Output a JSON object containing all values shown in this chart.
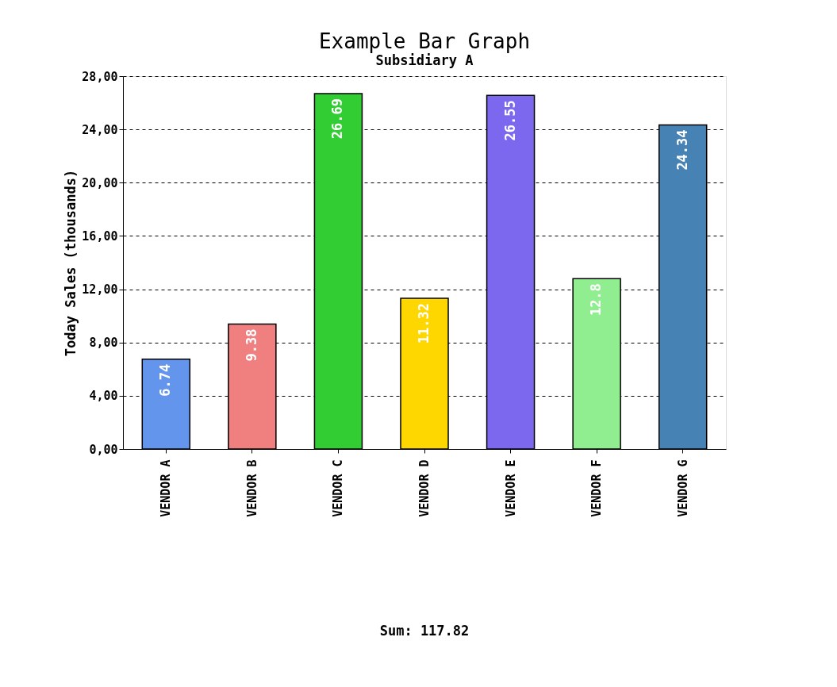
{
  "chart_data": {
    "type": "bar",
    "title": "Example Bar Graph",
    "subtitle": "Subsidiary A",
    "ylabel": "Today Sales (thousands)",
    "categories": [
      "VENDOR A",
      "VENDOR B",
      "VENDOR C",
      "VENDOR D",
      "VENDOR E",
      "VENDOR F",
      "VENDOR G"
    ],
    "values": [
      6.74,
      9.38,
      26.69,
      11.32,
      26.55,
      12.8,
      24.34
    ],
    "colors": [
      "#6495ed",
      "#f08080",
      "#32cd32",
      "#ffd700",
      "#7b68ee",
      "#90ee90",
      "#4682b4"
    ],
    "ylim": [
      0,
      28
    ],
    "yticks": [
      {
        "value": 0,
        "label": "0,00"
      },
      {
        "value": 4,
        "label": "4,00"
      },
      {
        "value": 8,
        "label": "8,00"
      },
      {
        "value": 12,
        "label": "12,00"
      },
      {
        "value": 16,
        "label": "16,00"
      },
      {
        "value": 20,
        "label": "20,00"
      },
      {
        "value": 24,
        "label": "24,00"
      },
      {
        "value": 28,
        "label": "28,00"
      }
    ],
    "grid": "y",
    "data_labels": true,
    "annotations": [
      "Sum: 117.82"
    ]
  }
}
